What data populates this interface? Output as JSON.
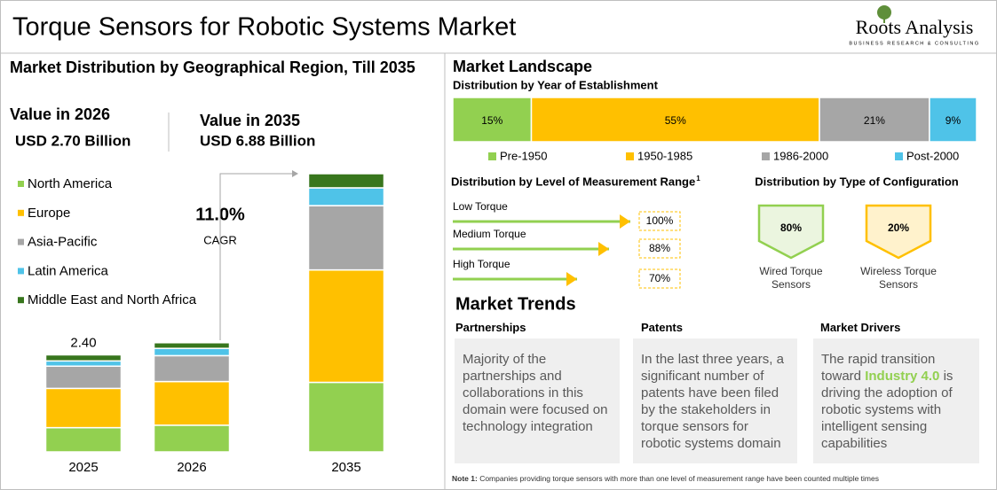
{
  "header": {
    "title": "Torque Sensors for Robotic Systems Market",
    "brand": "Roots Analysis",
    "tagline": "BUSINESS RESEARCH & CONSULTING"
  },
  "left": {
    "title": "Market Distribution by Geographical Region, Till 2035",
    "values": [
      {
        "label": "Value in 2026",
        "amount": "USD 2.70 Billion"
      },
      {
        "label": "Value in 2035",
        "amount": "USD 6.88 Billion"
      }
    ],
    "cagr": {
      "value": "11.0%",
      "label": "CAGR"
    }
  },
  "landscape": {
    "title": "Market Landscape"
  },
  "chart_data": [
    {
      "type": "stacked_bar",
      "categories": [
        "2025",
        "2026",
        "2035"
      ],
      "series": [
        {
          "name": "North America",
          "color": "#92d050",
          "values": [
            0.6,
            0.66,
            1.72
          ]
        },
        {
          "name": "Europe",
          "color": "#ffc000",
          "values": [
            0.97,
            1.08,
            2.78
          ]
        },
        {
          "name": "Asia-Pacific",
          "color": "#a6a6a6",
          "values": [
            0.55,
            0.64,
            1.59
          ]
        },
        {
          "name": "Latin America",
          "color": "#4fc3e8",
          "values": [
            0.13,
            0.18,
            0.44
          ]
        },
        {
          "name": "Middle East and North Africa",
          "color": "#38761d",
          "values": [
            0.15,
            0.14,
            0.35
          ]
        }
      ],
      "value_labels": [
        "2.40",
        null,
        null
      ]
    },
    {
      "type": "stacked_hbar",
      "title": "Distribution by Year of Establishment",
      "series": [
        {
          "name": "Pre-1950",
          "color": "#92d050",
          "values": [
            15
          ],
          "value_labels": [
            "15%"
          ]
        },
        {
          "name": "1950-1985",
          "color": "#ffc000",
          "values": [
            55
          ],
          "value_labels": [
            "55%"
          ]
        },
        {
          "name": "1986-2000",
          "color": "#a6a6a6",
          "values": [
            21
          ],
          "value_labels": [
            "21%"
          ]
        },
        {
          "name": "Post-2000",
          "color": "#4fc3e8",
          "values": [
            9
          ],
          "value_labels": [
            "9%"
          ]
        }
      ]
    },
    {
      "type": "arrow_bar",
      "title": "Distribution by Level of Measurement Range",
      "title_note": "1",
      "categories": [
        "Low Torque",
        "Medium Torque",
        "High Torque"
      ],
      "values": [
        100,
        88,
        70
      ],
      "value_labels": [
        "100%",
        "88%",
        "70%"
      ],
      "color": "#92d050",
      "arrow_color": "#ffc000"
    },
    {
      "type": "shield",
      "title": "Distribution by Type of Configuration",
      "categories": [
        "Wired Torque Sensors",
        "Wireless Torque Sensors"
      ],
      "values": [
        80,
        20
      ],
      "value_labels": [
        "80%",
        "20%"
      ],
      "colors": [
        "#92d050",
        "#ffc000"
      ]
    }
  ],
  "trends": {
    "title": "Market Trends",
    "cards": [
      {
        "heading": "Partnerships",
        "body": [
          "Majority of the partnerships and collaborations in this domain were focused on technology integration"
        ]
      },
      {
        "heading": "Patents",
        "body": [
          "In the last three years, a significant number of patents have been filed by the stakeholders in torque sensors for robotic systems domain"
        ]
      },
      {
        "heading": "Market Drivers",
        "body": [
          "The rapid transition toward ",
          "Industry 4.0",
          " is driving the adoption of robotic systems with intelligent sensing capabilities"
        ]
      }
    ]
  },
  "note": {
    "label": "Note 1:",
    "text": "Companies providing torque sensors with more than one level of measurement range have been counted multiple times"
  }
}
